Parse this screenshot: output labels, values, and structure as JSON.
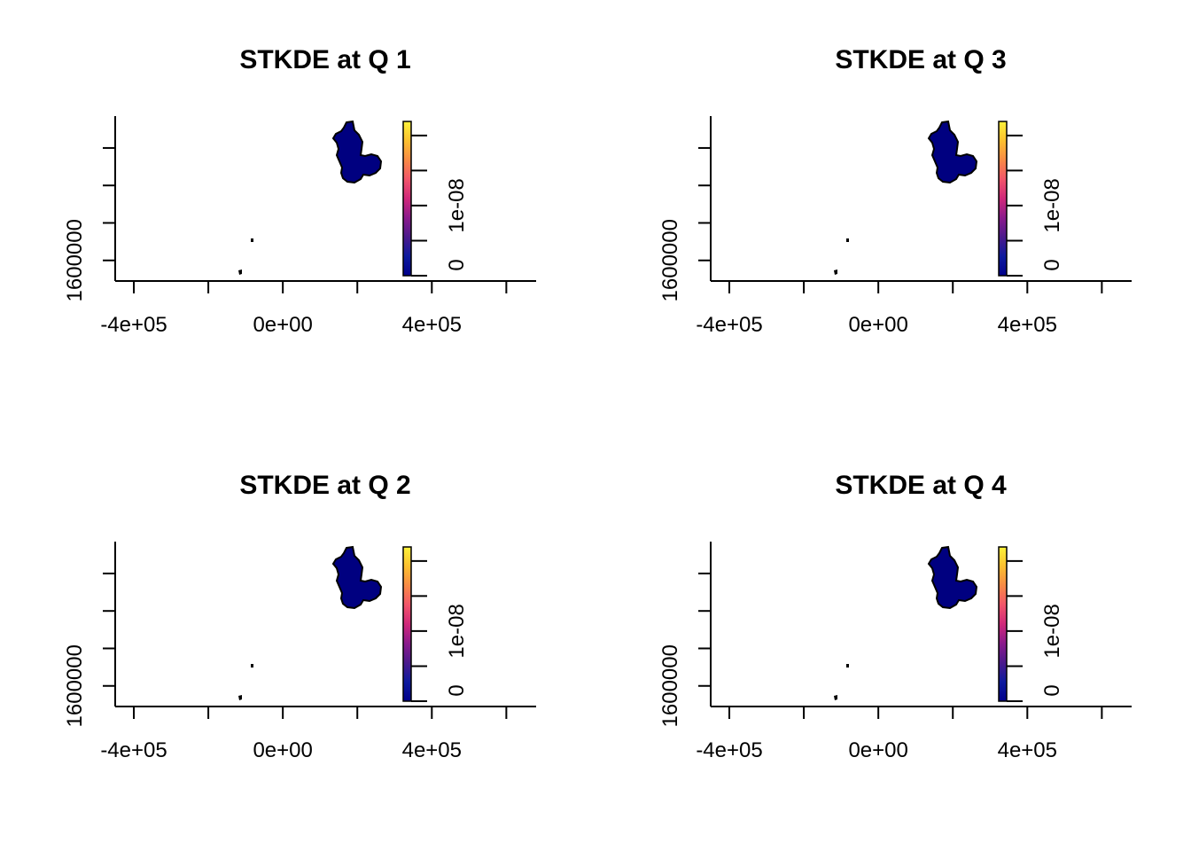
{
  "colors": {
    "background": "#ffffff",
    "region_fill": "#000080",
    "outline": "#000000",
    "colorbar": [
      "#00008b",
      "#0d1a9e",
      "#4b1a8c",
      "#8b1a8c",
      "#d0287a",
      "#f2556a",
      "#f88a45",
      "#fcc02f",
      "#fdf23a"
    ]
  },
  "chart_data": [
    {
      "type": "heatmap",
      "title": "STKDE at Q 1",
      "xlabel": "",
      "ylabel": "",
      "x_ticks": [
        -400000,
        -200000,
        0,
        200000,
        400000,
        600000
      ],
      "x_tick_labels": [
        "-4e+05",
        "",
        "0e+00",
        "",
        "4e+05",
        ""
      ],
      "y_ticks": [
        1600000,
        1700000,
        1800000,
        1900000
      ],
      "y_tick_labels": [
        "1600000",
        "",
        "",
        ""
      ],
      "xlim": [
        -450000,
        680000
      ],
      "ylim": [
        1545000,
        1985000
      ],
      "colorbar": {
        "ticks": [
          0,
          5e-09,
          1e-08,
          1.5e-08,
          2e-08
        ],
        "tick_labels": [
          "0",
          "",
          "1e-08",
          "",
          ""
        ],
        "range": [
          0,
          2.2e-08
        ]
      },
      "grid": false
    },
    {
      "type": "heatmap",
      "title": "STKDE at Q 3",
      "xlabel": "",
      "ylabel": "",
      "x_ticks": [
        -400000,
        -200000,
        0,
        200000,
        400000,
        600000
      ],
      "x_tick_labels": [
        "-4e+05",
        "",
        "0e+00",
        "",
        "4e+05",
        ""
      ],
      "y_ticks": [
        1600000,
        1700000,
        1800000,
        1900000
      ],
      "y_tick_labels": [
        "1600000",
        "",
        "",
        ""
      ],
      "xlim": [
        -450000,
        680000
      ],
      "ylim": [
        1545000,
        1985000
      ],
      "colorbar": {
        "ticks": [
          0,
          5e-09,
          1e-08,
          1.5e-08,
          2e-08
        ],
        "tick_labels": [
          "0",
          "",
          "1e-08",
          "",
          ""
        ],
        "range": [
          0,
          2.2e-08
        ]
      },
      "grid": false
    },
    {
      "type": "heatmap",
      "title": "STKDE at Q 2",
      "xlabel": "",
      "ylabel": "",
      "x_ticks": [
        -400000,
        -200000,
        0,
        200000,
        400000,
        600000
      ],
      "x_tick_labels": [
        "-4e+05",
        "",
        "0e+00",
        "",
        "4e+05",
        ""
      ],
      "y_ticks": [
        1600000,
        1700000,
        1800000,
        1900000
      ],
      "y_tick_labels": [
        "1600000",
        "",
        "",
        ""
      ],
      "xlim": [
        -450000,
        680000
      ],
      "ylim": [
        1545000,
        1985000
      ],
      "colorbar": {
        "ticks": [
          0,
          5e-09,
          1e-08,
          1.5e-08,
          2e-08
        ],
        "tick_labels": [
          "0",
          "",
          "1e-08",
          "",
          ""
        ],
        "range": [
          0,
          2.2e-08
        ]
      },
      "grid": false
    },
    {
      "type": "heatmap",
      "title": "STKDE at Q 4",
      "xlabel": "",
      "ylabel": "",
      "x_ticks": [
        -400000,
        -200000,
        0,
        200000,
        400000,
        600000
      ],
      "x_tick_labels": [
        "-4e+05",
        "",
        "0e+00",
        "",
        "4e+05",
        ""
      ],
      "y_ticks": [
        1600000,
        1700000,
        1800000,
        1900000
      ],
      "y_tick_labels": [
        "1600000",
        "",
        "",
        ""
      ],
      "xlim": [
        -450000,
        680000
      ],
      "ylim": [
        1545000,
        1985000
      ],
      "colorbar": {
        "ticks": [
          0,
          5e-09,
          1e-08,
          1.5e-08,
          2e-08
        ],
        "tick_labels": [
          "0",
          "",
          "1e-08",
          "",
          ""
        ],
        "range": [
          0,
          2.2e-08
        ]
      },
      "grid": false
    }
  ]
}
